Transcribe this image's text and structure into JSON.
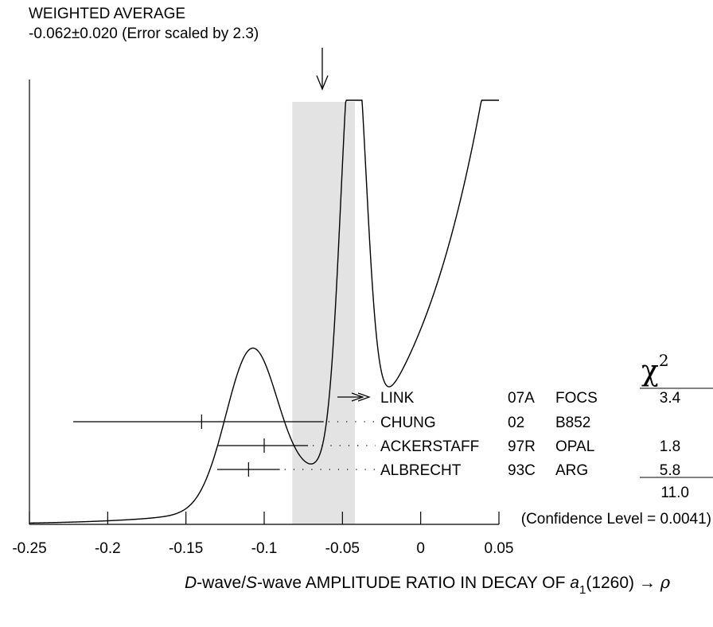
{
  "chart_data": {
    "type": "ideogram",
    "title": "WEIGHTED AVERAGE",
    "subtitle": "-0.062±0.020 (Error scaled by 2.3)",
    "average": {
      "value": -0.062,
      "error": 0.02,
      "error_scale": 2.3
    },
    "xlim": [
      -0.25,
      0.05
    ],
    "xticks": [
      "-0.25",
      "-0.2",
      "-0.15",
      "-0.1",
      "-0.05",
      "0",
      "0.05"
    ],
    "xtick_values": [
      -0.25,
      -0.2,
      -0.15,
      -0.1,
      -0.05,
      0,
      0.05
    ],
    "xlabel": {
      "part1": "D",
      "part2": "-wave/",
      "part3": "S",
      "part4": "-wave AMPLITUDE RATIO IN DECAY OF ",
      "part5": "a",
      "part6": "1",
      "part7": "(1260) → ",
      "part8": "ρ"
    },
    "chi2_header": "χ",
    "chi2_header_sup": "2",
    "measurements": [
      {
        "experiment": "LINK",
        "year": "07A",
        "collab": "FOCS",
        "chi2": "3.4",
        "value": -0.043,
        "low": null,
        "high": null,
        "arrow": true
      },
      {
        "experiment": "CHUNG",
        "year": "02",
        "collab": "B852",
        "chi2": "",
        "value": -0.14,
        "low": -0.222,
        "high": -0.062,
        "arrow": false
      },
      {
        "experiment": "ACKERSTAFF",
        "year": "97R",
        "collab": "OPAL",
        "chi2": "1.8",
        "value": -0.1,
        "low": -0.13,
        "high": -0.072,
        "arrow": false
      },
      {
        "experiment": "ALBRECHT",
        "year": "93C",
        "collab": "ARG",
        "chi2": "5.8",
        "value": -0.11,
        "low": -0.13,
        "high": -0.09,
        "arrow": false
      }
    ],
    "chi2_total": "11.0",
    "confidence_level": "(Confidence Level = 0.0041)"
  }
}
